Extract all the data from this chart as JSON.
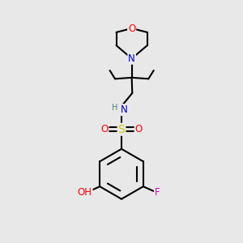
{
  "background_color": "#e8e8e8",
  "atom_colors": {
    "C": "#000000",
    "N": "#0000cc",
    "O": "#ff0000",
    "S": "#cccc00",
    "F": "#cc00cc",
    "H": "#4a8080"
  },
  "bond_color": "#000000",
  "bond_width": 1.5,
  "font_size": 8.5,
  "figsize": [
    3.0,
    3.0
  ],
  "dpi": 100,
  "xlim": [
    0,
    10
  ],
  "ylim": [
    0,
    10
  ]
}
